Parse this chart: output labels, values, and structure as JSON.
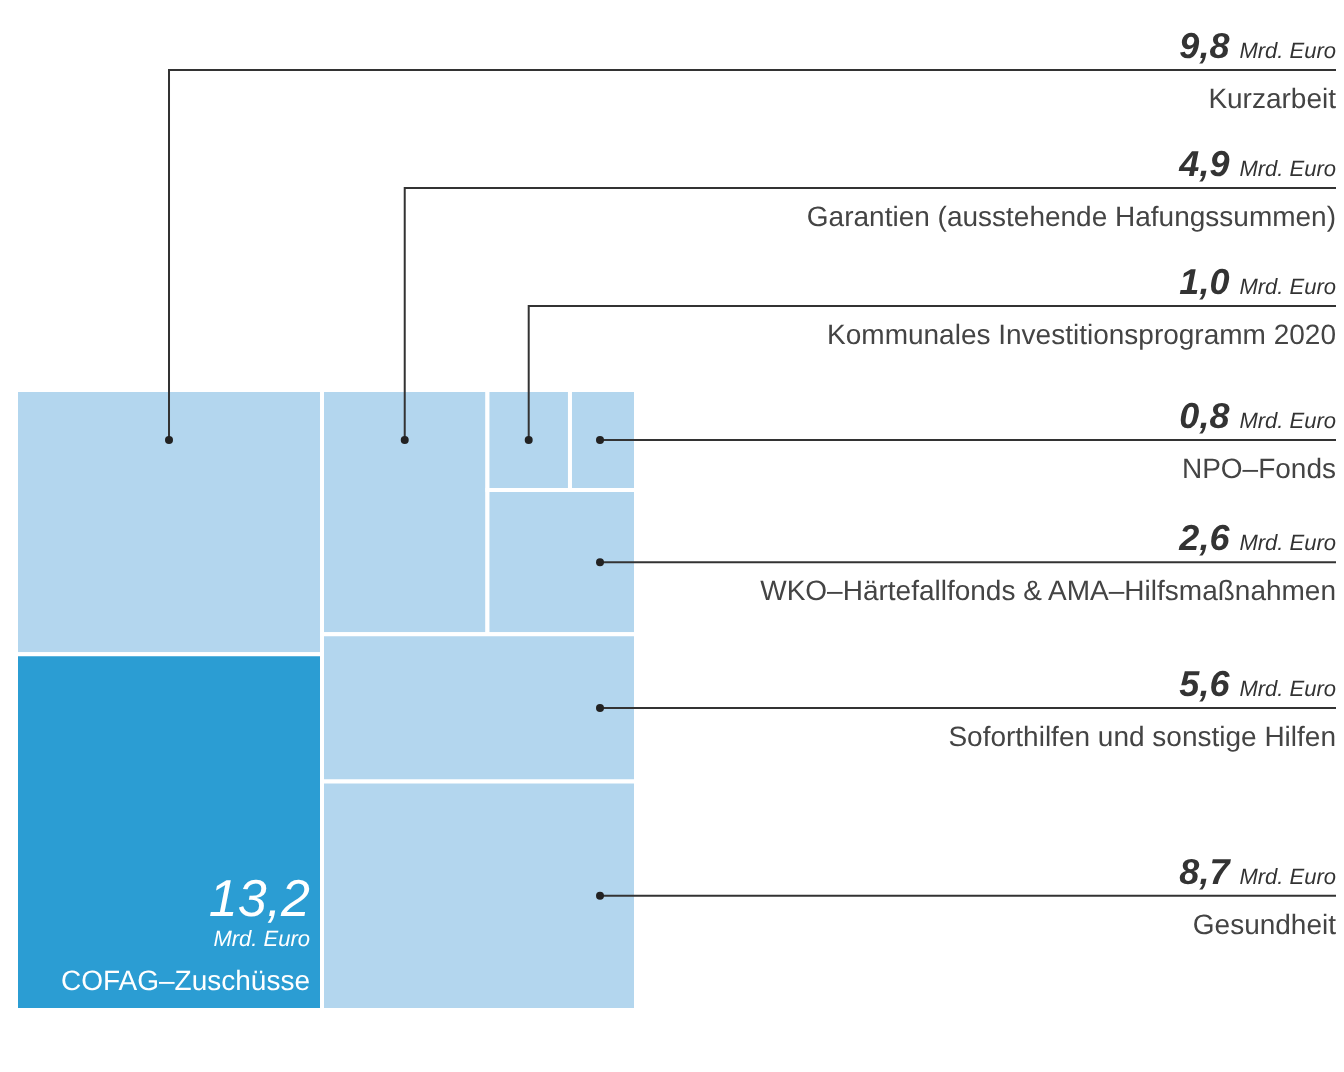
{
  "chart_data": {
    "type": "other",
    "categories": [
      "Kurzarbeit",
      "COFAG–Zuschüsse",
      "Garantien (ausstehende Hafungssummen)",
      "Kommunales Investitionsprogramm 2020",
      "NPO–Fonds",
      "WKO–Härtefallfonds & AMA–Hilfsmaßnahmen",
      "Soforthilfen und sonstige Hilfen",
      "Gesundheit"
    ],
    "values": [
      9.8,
      13.2,
      4.9,
      1.0,
      0.8,
      2.6,
      5.6,
      8.7
    ],
    "colors": [
      "#b3d6ee",
      "#2b9dd3",
      "#b3d6ee",
      "#b3d6ee",
      "#b3d6ee",
      "#b3d6ee",
      "#b3d6ee",
      "#b3d6ee"
    ],
    "value_labels": [
      "9,8 Mrd. Euro",
      "13,2 Mrd. Euro",
      "4,9 Mrd. Euro",
      "1,0 Mrd. Euro",
      "0,8 Mrd. Euro",
      "2,6 Mrd. Euro",
      "5,6 Mrd. Euro",
      "8,7 Mrd. Euro"
    ]
  }
}
